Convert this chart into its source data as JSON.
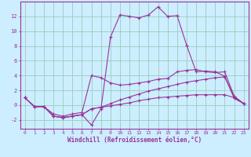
{
  "xlabel": "Windchill (Refroidissement éolien,°C)",
  "background_color": "#cceeff",
  "grid_color": "#99ccbb",
  "line_color": "#993399",
  "xlim": [
    -0.5,
    23.5
  ],
  "ylim": [
    -3.2,
    14.0
  ],
  "xticks": [
    0,
    1,
    2,
    3,
    4,
    5,
    6,
    7,
    8,
    9,
    10,
    11,
    12,
    13,
    14,
    15,
    16,
    17,
    18,
    19,
    20,
    21,
    22,
    23
  ],
  "yticks": [
    -2,
    0,
    2,
    4,
    6,
    8,
    10,
    12
  ],
  "series1_x": [
    0,
    1,
    2,
    3,
    4,
    5,
    6,
    7,
    8,
    9,
    10,
    11,
    12,
    13,
    14,
    15,
    16,
    17,
    18,
    19,
    20,
    21,
    22,
    23
  ],
  "series1_y": [
    1.0,
    -0.2,
    -0.2,
    -1.5,
    -1.7,
    -1.5,
    -1.3,
    -2.7,
    -0.5,
    9.2,
    12.2,
    12.0,
    11.8,
    12.2,
    13.3,
    12.0,
    12.1,
    8.1,
    4.5,
    4.6,
    4.5,
    3.9,
    0.9,
    0.2
  ],
  "series2_x": [
    0,
    1,
    2,
    3,
    4,
    5,
    6,
    7,
    8,
    9,
    10,
    11,
    12,
    13,
    14,
    15,
    16,
    17,
    18,
    19,
    20,
    21,
    22,
    23
  ],
  "series2_y": [
    1.0,
    -0.2,
    -0.2,
    -1.2,
    -1.5,
    -1.2,
    -1.0,
    4.0,
    3.7,
    3.0,
    2.7,
    2.8,
    3.0,
    3.2,
    3.5,
    3.6,
    4.5,
    4.7,
    4.8,
    4.5,
    4.4,
    4.5,
    1.2,
    0.2
  ],
  "series3_x": [
    0,
    1,
    2,
    3,
    4,
    5,
    6,
    7,
    8,
    9,
    10,
    11,
    12,
    13,
    14,
    15,
    16,
    17,
    18,
    19,
    20,
    21,
    22,
    23
  ],
  "series3_y": [
    1.0,
    -0.2,
    -0.2,
    -1.5,
    -1.7,
    -1.5,
    -1.3,
    -0.5,
    -0.3,
    0.2,
    0.7,
    1.1,
    1.5,
    1.9,
    2.2,
    2.5,
    2.8,
    3.1,
    3.3,
    3.5,
    3.7,
    3.8,
    1.1,
    0.2
  ],
  "series4_x": [
    0,
    1,
    2,
    3,
    4,
    5,
    6,
    7,
    8,
    9,
    10,
    11,
    12,
    13,
    14,
    15,
    16,
    17,
    18,
    19,
    20,
    21,
    22,
    23
  ],
  "series4_y": [
    1.0,
    -0.2,
    -0.2,
    -1.5,
    -1.7,
    -1.5,
    -1.3,
    -0.5,
    -0.3,
    -0.1,
    0.1,
    0.3,
    0.6,
    0.8,
    1.0,
    1.1,
    1.2,
    1.3,
    1.4,
    1.4,
    1.4,
    1.4,
    1.0,
    0.2
  ]
}
